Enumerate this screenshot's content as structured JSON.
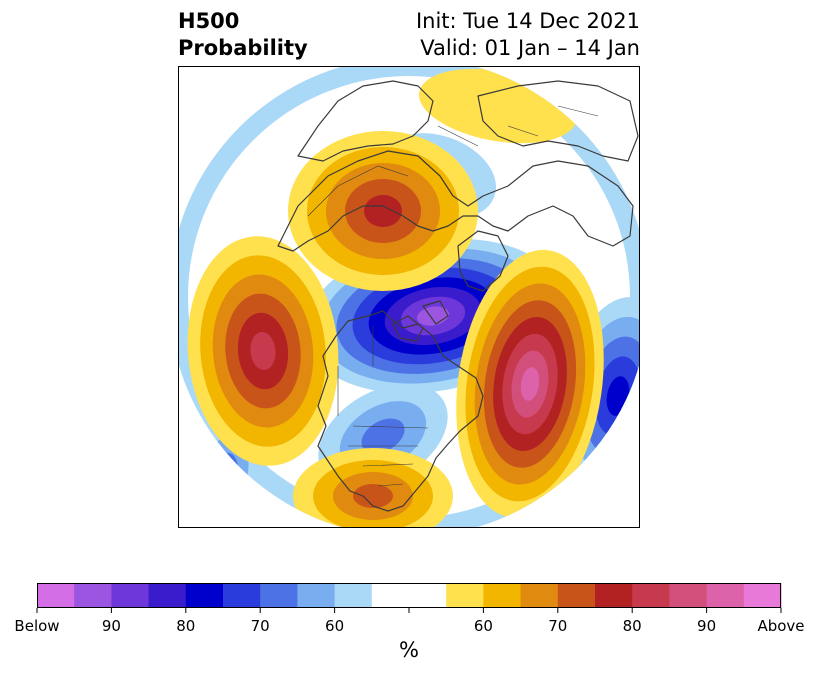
{
  "title": {
    "left_line1": "H500",
    "left_line2": "Probability",
    "right_line1": "Init: Tue 14 Dec 2021",
    "right_line2": "Valid: 01 Jan – 14 Jan"
  },
  "colorbar": {
    "colors": [
      "#d36ee6",
      "#9b55e0",
      "#6e37d9",
      "#3a1ccd",
      "#0000cc",
      "#2a3ddc",
      "#4d72e6",
      "#78aef0",
      "#aad8f7",
      "#ffffff",
      "#ffffff",
      "#ffe04d",
      "#f2b500",
      "#e08a10",
      "#c9541a",
      "#b22222",
      "#c7394d",
      "#d24f7c",
      "#dc62aa",
      "#e879d8"
    ],
    "labels": [
      {
        "text": "Below",
        "stop": 0
      },
      {
        "text": "90",
        "stop": 2
      },
      {
        "text": "80",
        "stop": 4
      },
      {
        "text": "70",
        "stop": 6
      },
      {
        "text": "60",
        "stop": 8
      },
      {
        "text": "60",
        "stop": 12
      },
      {
        "text": "70",
        "stop": 14
      },
      {
        "text": "80",
        "stop": 16
      },
      {
        "text": "90",
        "stop": 18
      },
      {
        "text": "Above",
        "stop": 20
      }
    ],
    "unit": "%"
  },
  "palette": {
    "below_levels": [
      "#aad8f7",
      "#78aef0",
      "#4d72e6",
      "#2a3ddc",
      "#0000cc",
      "#3a1ccd",
      "#6e37d9",
      "#9b55e0"
    ],
    "above_levels": [
      "#ffe04d",
      "#f2b500",
      "#e08a10",
      "#c9541a",
      "#b22222",
      "#c7394d",
      "#d24f7c",
      "#dc62aa"
    ],
    "coast": "#3a3a3a"
  }
}
